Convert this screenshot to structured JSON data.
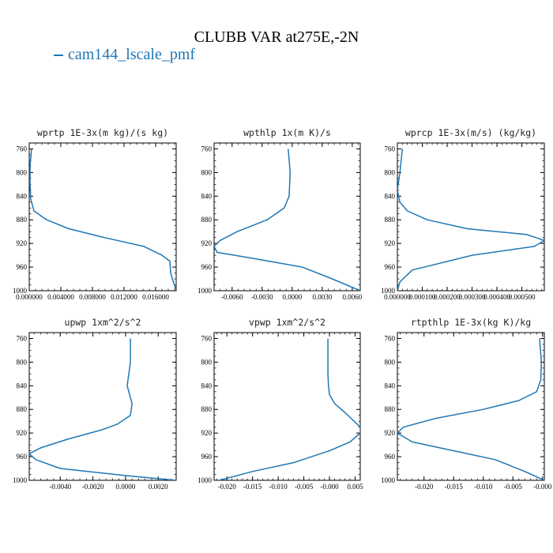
{
  "title": "CLUBB VAR at275E,-2N",
  "legend": {
    "label": "cam144_lscale_pmf",
    "color": "#1f77b4"
  },
  "chart_data": [
    {
      "type": "line",
      "title": "wprtp   1E-3x(m kg)/(s kg)",
      "ylim": [
        1000,
        750
      ],
      "y_ticks": [
        760,
        800,
        840,
        880,
        920,
        960,
        1000
      ],
      "xlim": [
        0.0,
        0.0186
      ],
      "x_ticks": [
        0.0,
        0.004,
        0.008,
        0.012,
        0.016
      ],
      "x_tick_labels": [
        "0.000000",
        "0.004000",
        "0.008000",
        "0.012000",
        "0.016000"
      ],
      "series": [
        {
          "x": [
            0.0003,
            0.0001,
            0.0001,
            0.0002,
            0.0006,
            0.0022,
            0.005,
            0.0095,
            0.0145,
            0.0168,
            0.0178,
            0.0179,
            0.0186
          ],
          "y": [
            760,
            790,
            820,
            845,
            865,
            880,
            895,
            910,
            925,
            940,
            950,
            970,
            1000
          ]
        }
      ]
    },
    {
      "type": "line",
      "title": "wpthlp   1x(m K)/s",
      "ylim": [
        1000,
        750
      ],
      "y_ticks": [
        760,
        800,
        840,
        880,
        920,
        960,
        1000
      ],
      "xlim": [
        -0.0078,
        0.0068
      ],
      "x_ticks": [
        -0.006,
        -0.003,
        0.0,
        0.003,
        0.006
      ],
      "x_tick_labels": [
        "-0.0060",
        "-0.0030",
        "0.0000",
        "0.0030",
        "0.0060"
      ],
      "series": [
        {
          "x": [
            -0.0004,
            -0.0002,
            -0.0003,
            -0.0008,
            -0.0025,
            -0.0055,
            -0.0072,
            -0.0078,
            -0.0075,
            -0.004,
            0.001,
            0.004,
            0.0068
          ],
          "y": [
            760,
            800,
            840,
            860,
            880,
            900,
            915,
            925,
            935,
            945,
            960,
            980,
            1000
          ]
        }
      ]
    },
    {
      "type": "line",
      "title": "wprcp   1E-3x(m/s) (kg/kg)",
      "ylim": [
        1000,
        750
      ],
      "y_ticks": [
        760,
        800,
        840,
        880,
        920,
        960,
        1000
      ],
      "xlim": [
        0.0,
        0.00059
      ],
      "x_ticks": [
        0.0,
        0.0001,
        0.0002,
        0.0003,
        0.0004,
        0.0005
      ],
      "x_tick_labels": [
        "0.000000",
        "0.000100",
        "0.000200",
        "0.000300",
        "0.000400",
        "0.000500"
      ],
      "series": [
        {
          "x": [
            2e-05,
            1e-05,
            0.0,
            1e-05,
            4e-05,
            0.00012,
            0.00028,
            0.00052,
            0.00059,
            0.00055,
            0.0003,
            6e-05,
            1e-05,
            0.0
          ],
          "y": [
            760,
            800,
            830,
            850,
            865,
            880,
            895,
            905,
            915,
            925,
            940,
            965,
            985,
            1000
          ]
        }
      ]
    },
    {
      "type": "line",
      "title": "upwp   1xm^2/s^2",
      "ylim": [
        1000,
        750
      ],
      "y_ticks": [
        760,
        800,
        840,
        880,
        920,
        960,
        1000
      ],
      "xlim": [
        -0.0059,
        0.0031
      ],
      "x_ticks": [
        -0.004,
        -0.002,
        0.0,
        0.002
      ],
      "x_tick_labels": [
        "-0.0040",
        "-0.0020",
        "0.0000",
        "0.0020"
      ],
      "series": [
        {
          "x": [
            0.0003,
            0.0003,
            0.0001,
            0.0003,
            0.0004,
            0.0003,
            -0.0005,
            -0.0015,
            -0.0035,
            -0.0052,
            -0.0059,
            -0.0055,
            -0.004,
            0.0,
            0.0031
          ],
          "y": [
            760,
            800,
            840,
            860,
            870,
            890,
            905,
            915,
            930,
            945,
            955,
            965,
            980,
            992,
            1000
          ]
        }
      ]
    },
    {
      "type": "line",
      "title": "vpwp   1xm^2/s^2",
      "ylim": [
        1000,
        750
      ],
      "y_ticks": [
        760,
        800,
        840,
        880,
        920,
        960,
        1000
      ],
      "xlim": [
        -0.0225,
        0.006
      ],
      "x_ticks": [
        -0.02,
        -0.015,
        -0.01,
        -0.005,
        0.0,
        0.005
      ],
      "x_tick_labels": [
        "-0.020",
        "-0.015",
        "-0.010",
        "-0.005",
        "-0.000",
        "0.005"
      ],
      "series": [
        {
          "x": [
            -0.0003,
            -0.0003,
            -0.0002,
            0.0,
            0.001,
            0.003,
            0.006,
            0.006,
            0.004,
            0.0,
            -0.007,
            -0.015,
            -0.0215
          ],
          "y": [
            760,
            820,
            840,
            855,
            870,
            885,
            910,
            920,
            935,
            950,
            970,
            985,
            1000
          ]
        }
      ]
    },
    {
      "type": "line",
      "title": "rtpthlp   1E-3x(kg K)/kg",
      "ylim": [
        1000,
        750
      ],
      "y_ticks": [
        760,
        800,
        840,
        880,
        920,
        960,
        1000
      ],
      "xlim": [
        -0.0245,
        0.0003
      ],
      "x_ticks": [
        -0.02,
        -0.015,
        -0.01,
        -0.005,
        0.0
      ],
      "x_tick_labels": [
        "-0.020",
        "-0.015",
        "-0.010",
        "-0.005",
        "-0.000"
      ],
      "series": [
        {
          "x": [
            -0.0005,
            -0.0002,
            -0.0003,
            -0.001,
            -0.004,
            -0.01,
            -0.018,
            -0.0235,
            -0.0245,
            -0.022,
            -0.015,
            -0.008,
            -0.003,
            0.0003
          ],
          "y": [
            760,
            800,
            830,
            850,
            865,
            880,
            895,
            910,
            920,
            935,
            950,
            965,
            985,
            1000
          ]
        }
      ]
    }
  ]
}
